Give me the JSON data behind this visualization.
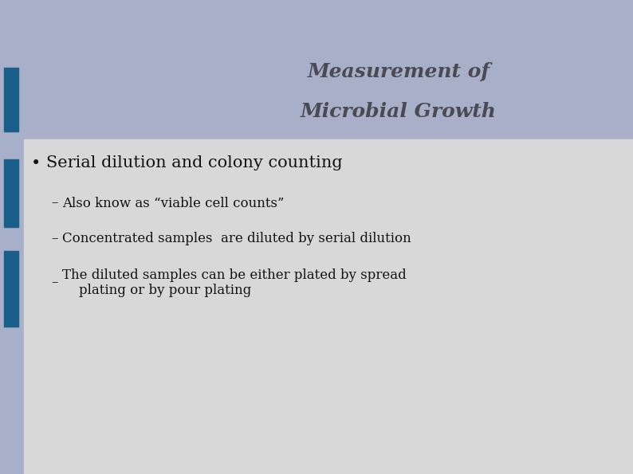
{
  "title_line1": "Measurement of",
  "title_line2": "Microbial Growth",
  "title_color": "#4a4a52",
  "title_fontsize": 18,
  "header_bg": "#a8afc8",
  "body_bg": "#d8d8d8",
  "slide_bg": "#a8afc8",
  "left_bar_color": "#1a5f8a",
  "bullet_text": "Serial dilution and colony counting",
  "bullet_fontsize": 15,
  "bullet_color": "#111111",
  "sub_bullets": [
    "Also know as “viable cell counts”",
    "Concentrated samples  are diluted by serial dilution",
    "The diluted samples can be either plated by spread\n    plating or by pour plating"
  ],
  "sub_bullet_fontsize": 12,
  "sub_bullet_color": "#111111"
}
